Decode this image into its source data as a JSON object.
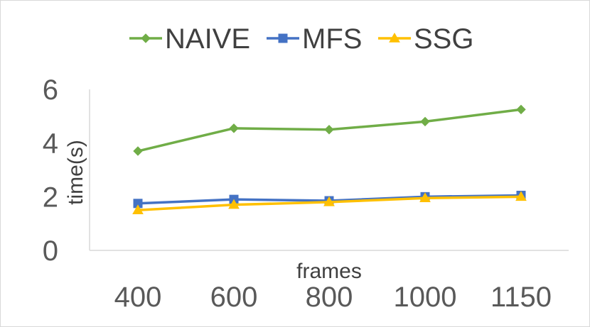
{
  "chart_data": {
    "type": "line",
    "title": "",
    "xlabel": "frames",
    "ylabel": "time(s)",
    "categories": [
      "400",
      "600",
      "800",
      "1000",
      "1150"
    ],
    "ylim": [
      0,
      6
    ],
    "yticks": [
      "0",
      "2",
      "4",
      "6"
    ],
    "grid": false,
    "legend_position": "top",
    "series": [
      {
        "name": "NAIVE",
        "marker": "diamond",
        "color": "#70AD47",
        "values": [
          3.7,
          4.55,
          4.5,
          4.8,
          5.25
        ]
      },
      {
        "name": "MFS",
        "marker": "square",
        "color": "#4472C4",
        "values": [
          1.75,
          1.9,
          1.85,
          2.0,
          2.05
        ]
      },
      {
        "name": "SSG",
        "marker": "triangle",
        "color": "#FFC000",
        "values": [
          1.5,
          1.7,
          1.8,
          1.95,
          2.0
        ]
      }
    ]
  }
}
